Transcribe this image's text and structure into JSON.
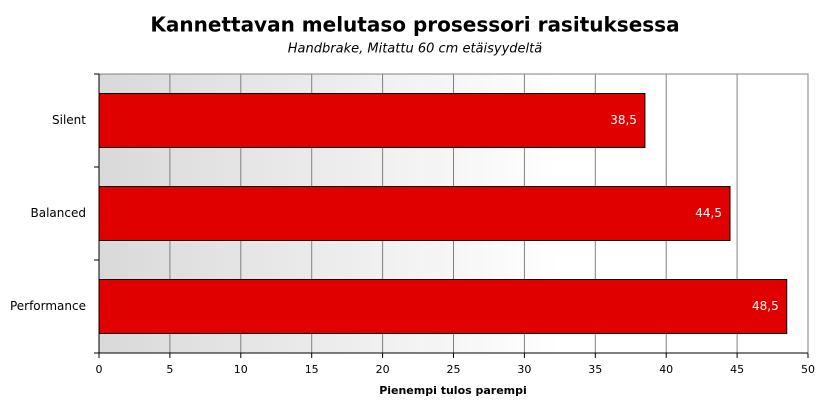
{
  "chart_data": {
    "type": "bar",
    "orientation": "horizontal",
    "title": "Kannettavan melutaso prosessori rasituksessa",
    "subtitle": "Handbrake,  Mitattu 60 cm etäisyydeltä",
    "x_label": "Pienempi tulos parempi",
    "categories": [
      "Silent",
      "Balanced",
      "Performance"
    ],
    "values": [
      38.5,
      44.5,
      48.5
    ],
    "value_labels": [
      "38,5",
      "44,5",
      "48,5"
    ],
    "color": "#e00000",
    "xlim": [
      0,
      50
    ],
    "xticks": [
      0,
      5,
      10,
      15,
      20,
      25,
      30,
      35,
      40,
      45,
      50
    ],
    "grid": true
  }
}
